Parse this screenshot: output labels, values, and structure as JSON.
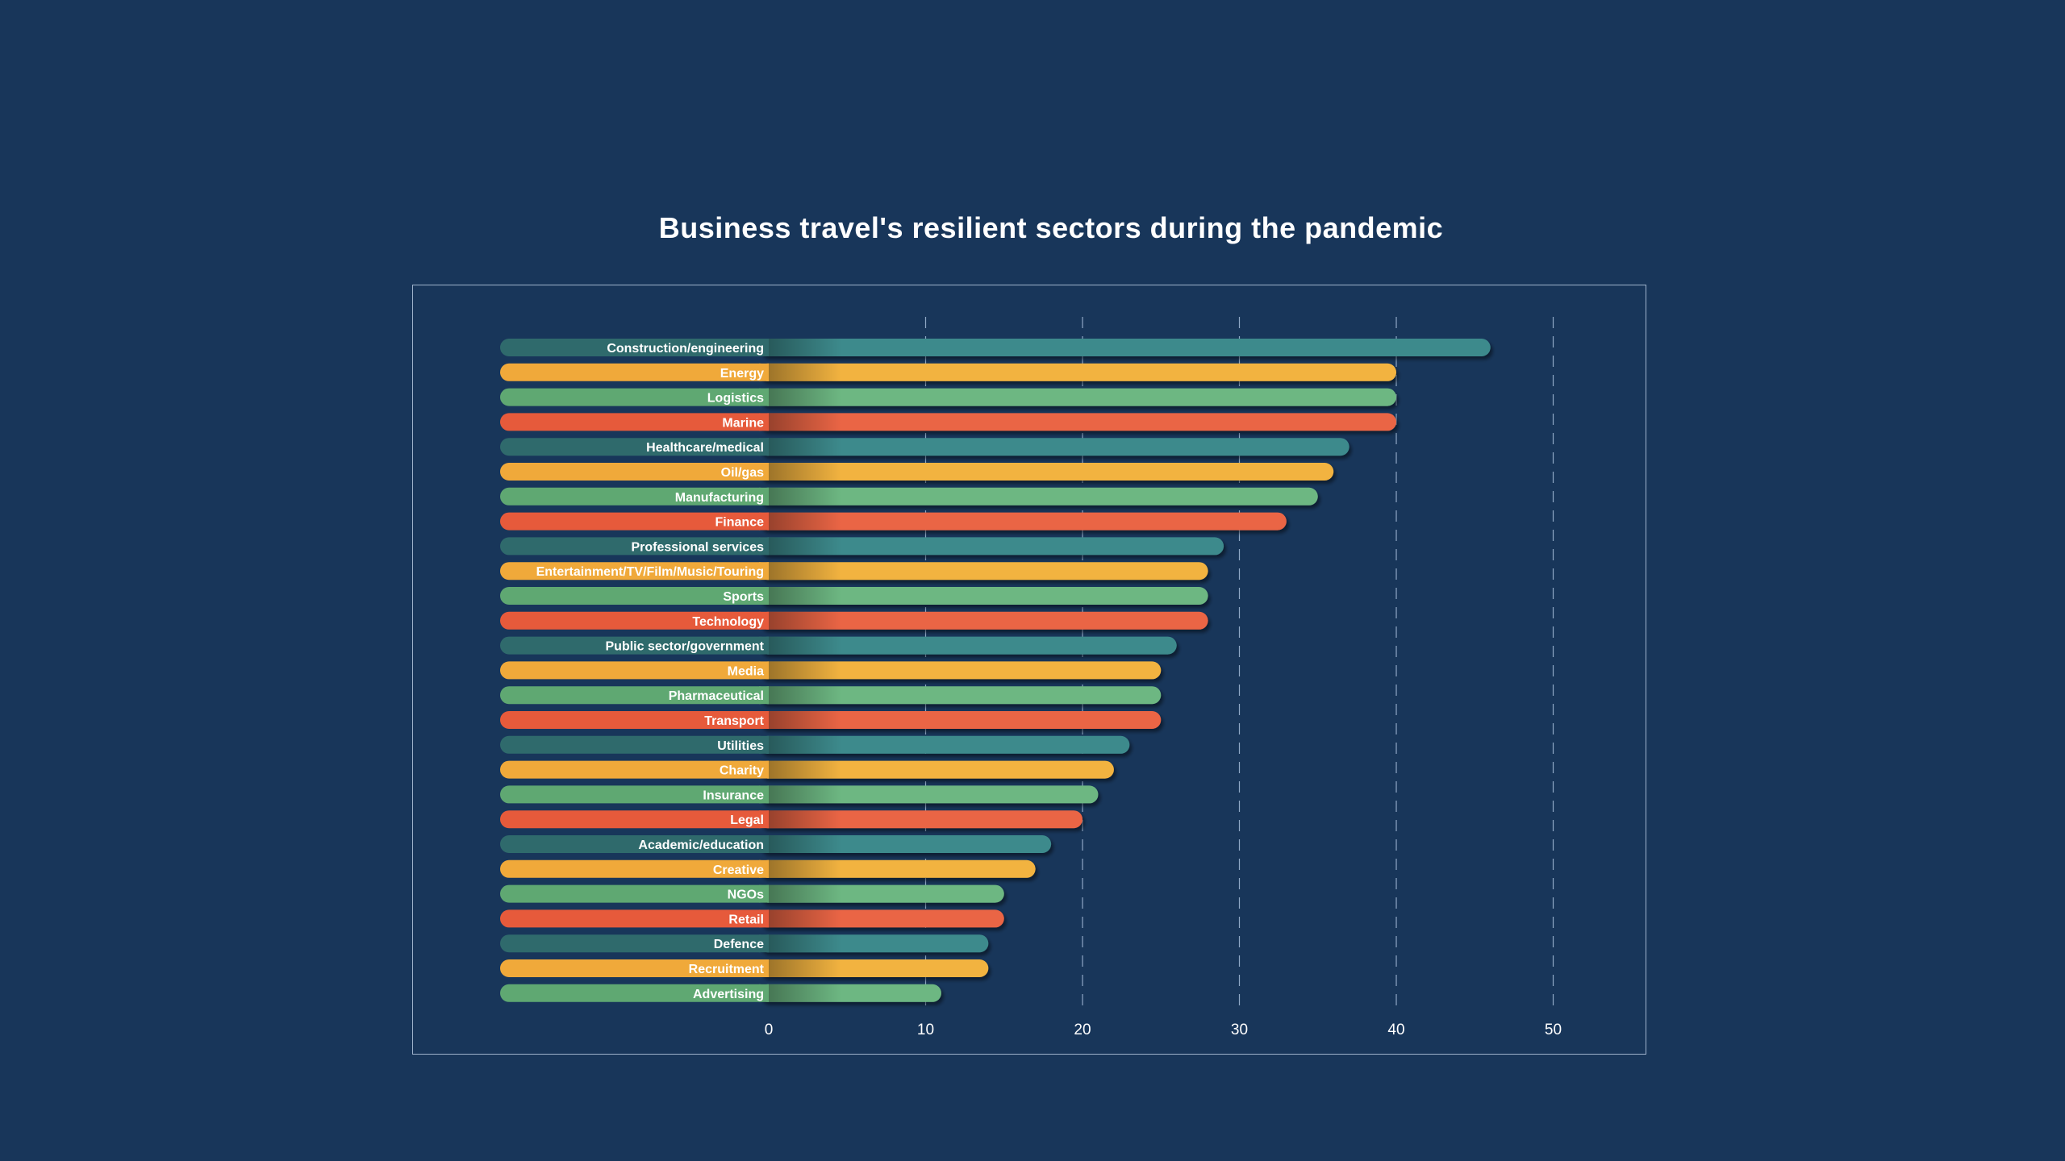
{
  "chart_data": {
    "type": "bar",
    "orientation": "horizontal",
    "title": "Business travel's resilient sectors during the pandemic",
    "xlabel": "",
    "ylabel": "",
    "xlim": [
      0,
      50
    ],
    "xticks": [
      0,
      10,
      20,
      30,
      40,
      50
    ],
    "grid": "vertical dashed",
    "categories": [
      "Construction/engineering",
      "Energy",
      "Logistics",
      "Marine",
      "Healthcare/medical",
      "Oil/gas",
      "Manufacturing",
      "Finance",
      "Professional services",
      "Entertainment/TV/Film/Music/Touring",
      "Sports",
      "Technology",
      "Public sector/government",
      "Media",
      "Pharmaceutical",
      "Transport",
      "Utilities",
      "Charity",
      "Insurance",
      "Legal",
      "Academic/education",
      "Creative",
      "NGOs",
      "Retail",
      "Defence",
      "Recruitment",
      "Advertising"
    ],
    "values": [
      46,
      40,
      40,
      40,
      37,
      36,
      35,
      33,
      29,
      28,
      28,
      28,
      26,
      25,
      25,
      25,
      23,
      22,
      21,
      20,
      18,
      17,
      15,
      15,
      14,
      14,
      11
    ],
    "color_cycle": [
      {
        "label": "#2f6a6c",
        "bar": "#3e8a8c"
      },
      {
        "label": "#f0a93a",
        "bar": "#f2b33f"
      },
      {
        "label": "#5fa872",
        "bar": "#6db782"
      },
      {
        "label": "#e65a3b",
        "bar": "#ea6545"
      }
    ]
  },
  "background": "#18365a"
}
